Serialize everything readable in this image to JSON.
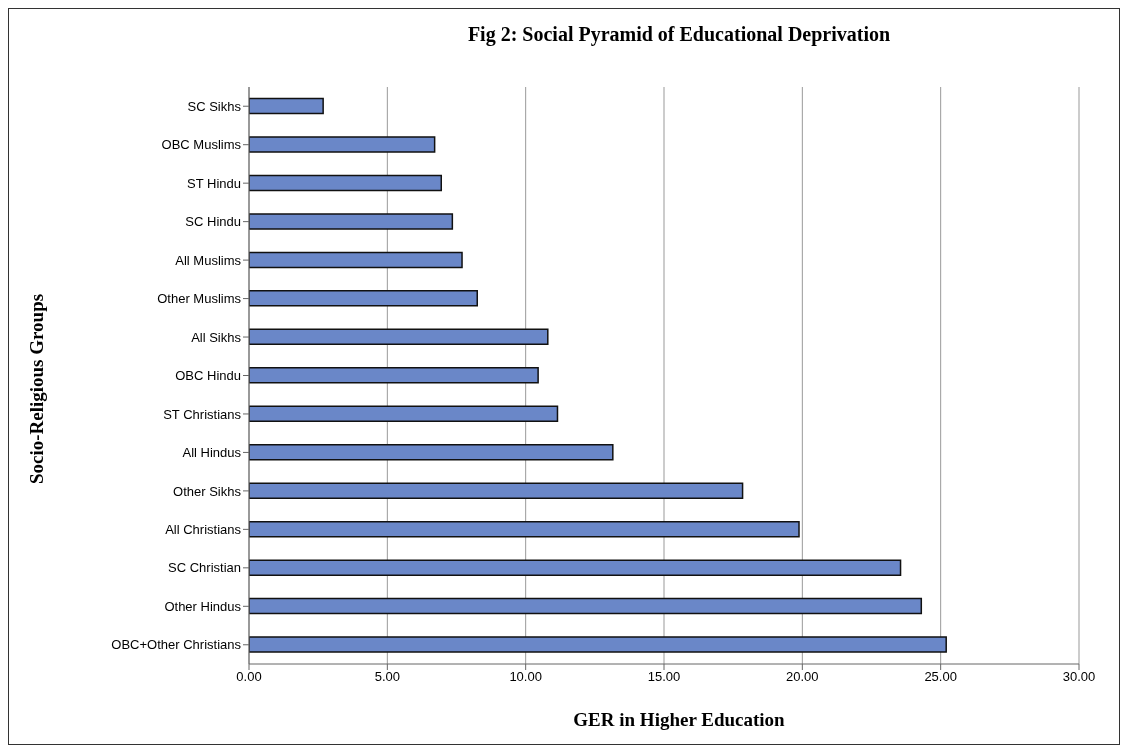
{
  "chart_data": {
    "type": "bar",
    "orientation": "horizontal",
    "title": "Fig 2: Social Pyramid of Educational Deprivation",
    "xlabel": "GER in Higher Education",
    "ylabel": "Socio-Religious Groups",
    "categories": [
      "SC Sikhs",
      "OBC Muslims",
      "ST Hindu",
      "SC Hindu",
      "All Muslims",
      "Other Muslims",
      "All Sikhs",
      "OBC Hindu",
      "ST Christians",
      "All Hindus",
      "Other Sikhs",
      "All Christians",
      "SC Christian",
      "Other Hindus",
      "OBC+Other Christians"
    ],
    "values": [
      2.68,
      6.71,
      6.95,
      7.35,
      7.7,
      8.25,
      10.8,
      10.45,
      11.15,
      13.15,
      17.84,
      19.88,
      23.55,
      24.3,
      25.2
    ],
    "color": "#6a87c8",
    "xlim": [
      0,
      30
    ],
    "xticks": [
      {
        "value": 0,
        "label": "0.00"
      },
      {
        "value": 5,
        "label": "5.00"
      },
      {
        "value": 10,
        "label": "10.00"
      },
      {
        "value": 15,
        "label": "15.00"
      },
      {
        "value": 20,
        "label": "20.00"
      },
      {
        "value": 25,
        "label": "25.00"
      },
      {
        "value": 30,
        "label": "30.00"
      }
    ],
    "grid": "x",
    "legend": false
  }
}
